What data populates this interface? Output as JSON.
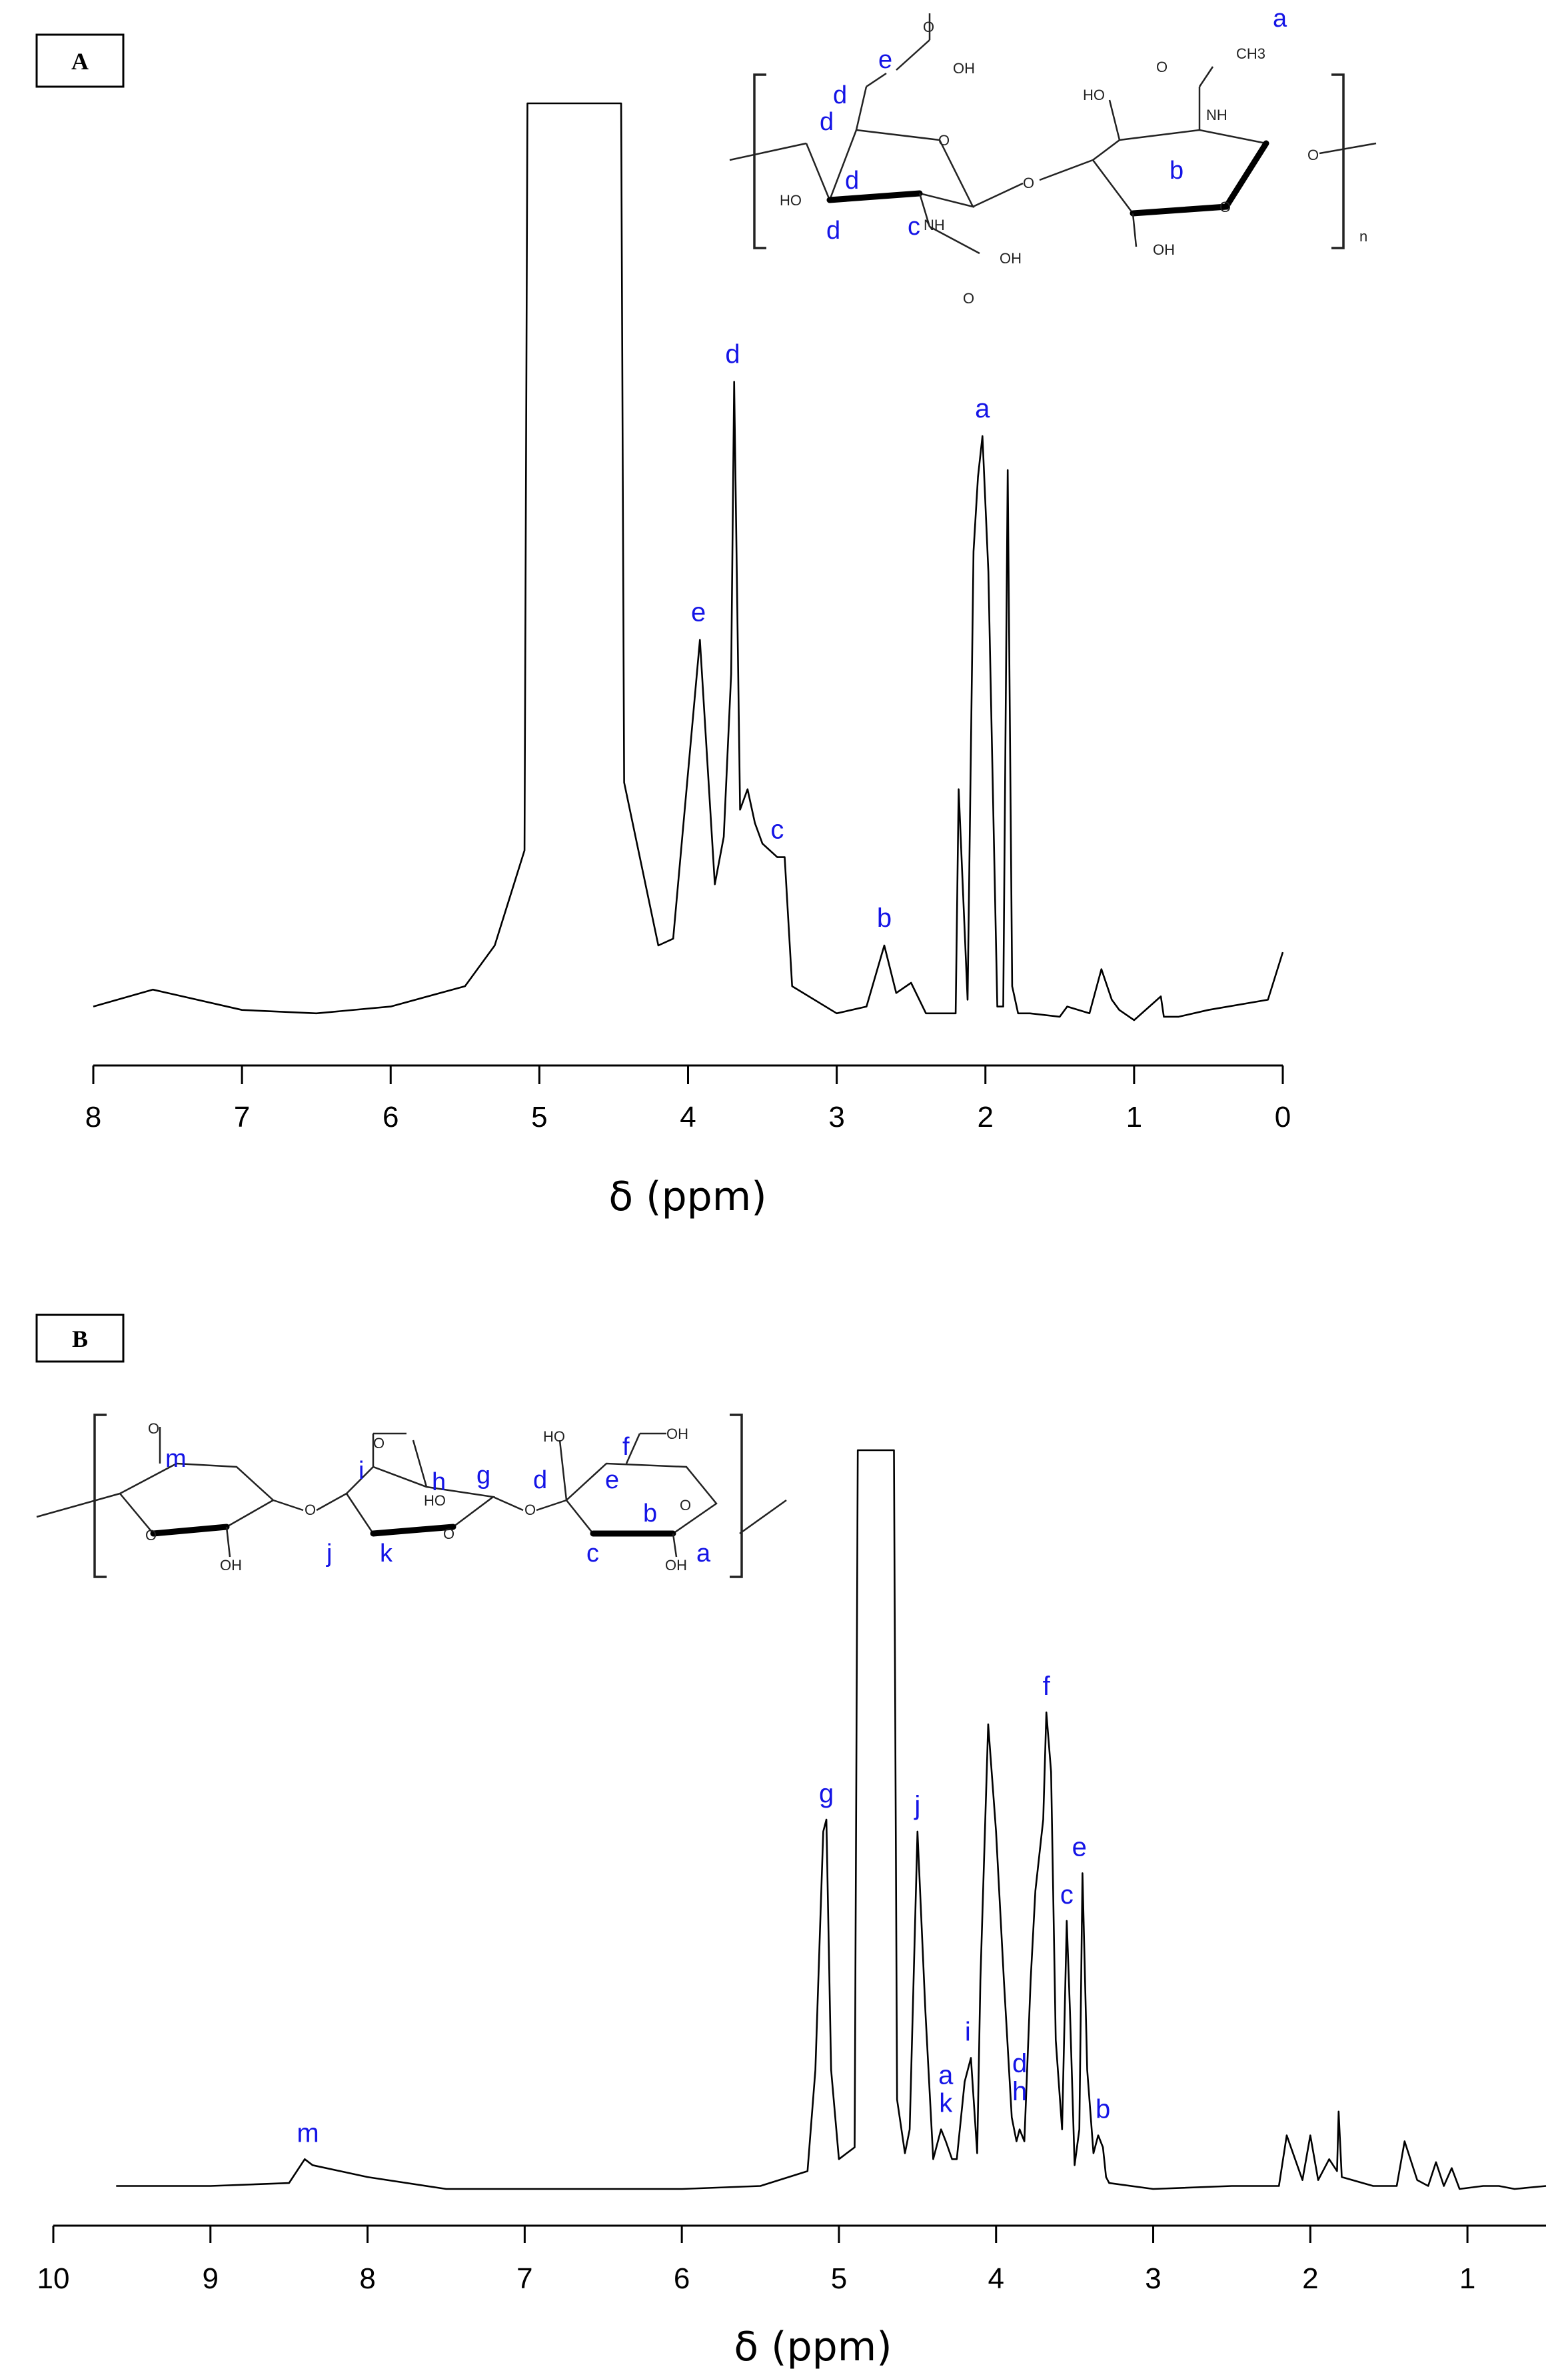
{
  "chart_data": [
    {
      "panel": "A",
      "type": "line",
      "xlabel": "δ (ppm)",
      "ylabel": "",
      "xlim": [
        8,
        0
      ],
      "x_reversed": true,
      "xticks": [
        "8",
        "7",
        "6",
        "5",
        "4",
        "3",
        "2",
        "1",
        "0"
      ],
      "y_ticks_shown": false,
      "series": [
        {
          "x": [
            8.0,
            7.6,
            7.0,
            6.5,
            6.0,
            5.5,
            5.3,
            5.1,
            5.08,
            4.45,
            4.43,
            4.2,
            4.1,
            3.92,
            3.82,
            3.76,
            3.71,
            3.69,
            3.65,
            3.6,
            3.55,
            3.5,
            3.4,
            3.35,
            3.3,
            3.0,
            2.8,
            2.68,
            2.6,
            2.5,
            2.4,
            2.2,
            2.18,
            2.12,
            2.08,
            2.05,
            2.02,
            1.98,
            1.92,
            1.88,
            1.85,
            1.82,
            1.78,
            1.7,
            1.5,
            1.45,
            1.3,
            1.22,
            1.15,
            1.1,
            1.0,
            0.82,
            0.8,
            0.7,
            0.5,
            0.1,
            0.0
          ],
          "y": [
            2.0,
            4.5,
            1.5,
            1.0,
            2.0,
            5.0,
            11.0,
            25.0,
            135.0,
            135.0,
            35.0,
            11.0,
            12.0,
            56.0,
            20.0,
            27.0,
            51.0,
            94.0,
            31.0,
            34.0,
            29.0,
            26.0,
            24.0,
            24.0,
            5.0,
            1.0,
            2.0,
            11.0,
            4.0,
            5.5,
            1.0,
            1.0,
            34.0,
            3.0,
            69.0,
            80.0,
            86.0,
            66.0,
            2.0,
            2.0,
            81.0,
            5.0,
            1.0,
            1.0,
            0.5,
            2.0,
            1.0,
            7.5,
            3.0,
            1.5,
            0.0,
            3.5,
            0.5,
            0.5,
            1.5,
            3.0,
            10.0
          ]
        }
      ],
      "peak_labels": [
        {
          "label": "e",
          "x": 3.93
        },
        {
          "label": "d",
          "x": 3.7
        },
        {
          "label": "c",
          "x": 3.4
        },
        {
          "label": "b",
          "x": 2.68
        },
        {
          "label": "a",
          "x": 2.02
        }
      ],
      "structure": {
        "letters": [
          "a",
          "b",
          "c",
          "d",
          "d",
          "d",
          "d",
          "e"
        ],
        "atom_labels": [
          "OH",
          "O",
          "HO",
          "NH",
          "OH",
          "O",
          "O",
          "HO",
          "NH",
          "O",
          "CH3",
          "O",
          "OH",
          "O",
          "O"
        ],
        "repeat_label": "n"
      }
    },
    {
      "panel": "B",
      "type": "line",
      "xlabel": "δ (ppm)",
      "ylabel": "",
      "xlim": [
        10,
        0.5
      ],
      "x_reversed": true,
      "xticks": [
        "10",
        "9",
        "8",
        "7",
        "6",
        "5",
        "4",
        "3",
        "2",
        "1"
      ],
      "y_ticks_shown": false,
      "series": [
        {
          "x": [
            9.6,
            9.0,
            8.5,
            8.4,
            8.35,
            8.0,
            7.5,
            7.0,
            6.0,
            5.5,
            5.2,
            5.15,
            5.1,
            5.08,
            5.05,
            5.0,
            4.9,
            4.88,
            4.86,
            4.65,
            4.63,
            4.58,
            4.55,
            4.5,
            4.45,
            4.4,
            4.35,
            4.32,
            4.28,
            4.25,
            4.2,
            4.16,
            4.12,
            4.1,
            4.05,
            4.0,
            3.95,
            3.9,
            3.87,
            3.85,
            3.82,
            3.78,
            3.75,
            3.7,
            3.68,
            3.65,
            3.62,
            3.58,
            3.55,
            3.53,
            3.5,
            3.47,
            3.45,
            3.42,
            3.38,
            3.35,
            3.32,
            3.3,
            3.28,
            3.0,
            2.5,
            2.2,
            2.15,
            2.05,
            2.0,
            1.95,
            1.88,
            1.83,
            1.82,
            1.8,
            1.6,
            1.45,
            1.4,
            1.32,
            1.25,
            1.2,
            1.15,
            1.1,
            1.05,
            0.9,
            0.8,
            0.7,
            0.5
          ],
          "y": [
            0.5,
            0.5,
            1.0,
            5.0,
            4.0,
            2.0,
            0.0,
            0.0,
            0.0,
            0.5,
            3.0,
            20.0,
            60.0,
            62.0,
            20.0,
            5.0,
            7.0,
            124.0,
            124.0,
            124.0,
            15.0,
            6.0,
            10.0,
            60.0,
            30.0,
            5.0,
            10.0,
            8.0,
            5.0,
            5.0,
            18.0,
            22.0,
            6.0,
            35.0,
            78.0,
            60.0,
            35.0,
            12.0,
            8.0,
            10.0,
            8.0,
            35.0,
            50.0,
            62.0,
            80.0,
            70.0,
            25.0,
            10.0,
            45.0,
            30.0,
            4.0,
            10.0,
            53.0,
            20.0,
            6.0,
            9.0,
            7.0,
            2.0,
            1.0,
            0.0,
            0.5,
            0.5,
            9.0,
            1.5,
            9.0,
            1.5,
            5.0,
            3.0,
            13.0,
            2.0,
            0.5,
            0.5,
            8.0,
            1.5,
            0.5,
            4.5,
            0.5,
            3.5,
            0.0,
            0.5,
            0.5,
            0.0,
            0.5
          ]
        }
      ],
      "peak_labels": [
        {
          "label": "m",
          "x": 8.38
        },
        {
          "label": "g",
          "x": 5.08
        },
        {
          "label": "j",
          "x": 4.5
        },
        {
          "label": "k",
          "x": 4.32
        },
        {
          "label": "a",
          "x": 4.32
        },
        {
          "label": "i",
          "x": 4.18
        },
        {
          "label": "h",
          "x": 3.85
        },
        {
          "label": "d",
          "x": 3.85
        },
        {
          "label": "f",
          "x": 3.68
        },
        {
          "label": "c",
          "x": 3.55
        },
        {
          "label": "e",
          "x": 3.47
        },
        {
          "label": "b",
          "x": 3.32
        }
      ],
      "structure": {
        "letters": [
          "m",
          "i",
          "h",
          "g",
          "j",
          "k",
          "d",
          "e",
          "f",
          "b",
          "c",
          "a"
        ],
        "atom_labels": [
          "O",
          "O",
          "OH",
          "O",
          "O",
          "HO",
          "O",
          "O",
          "HO",
          "OH",
          "O",
          "OH"
        ]
      }
    }
  ],
  "panels": {
    "a": {
      "label": "A"
    },
    "b": {
      "label": "B"
    }
  }
}
